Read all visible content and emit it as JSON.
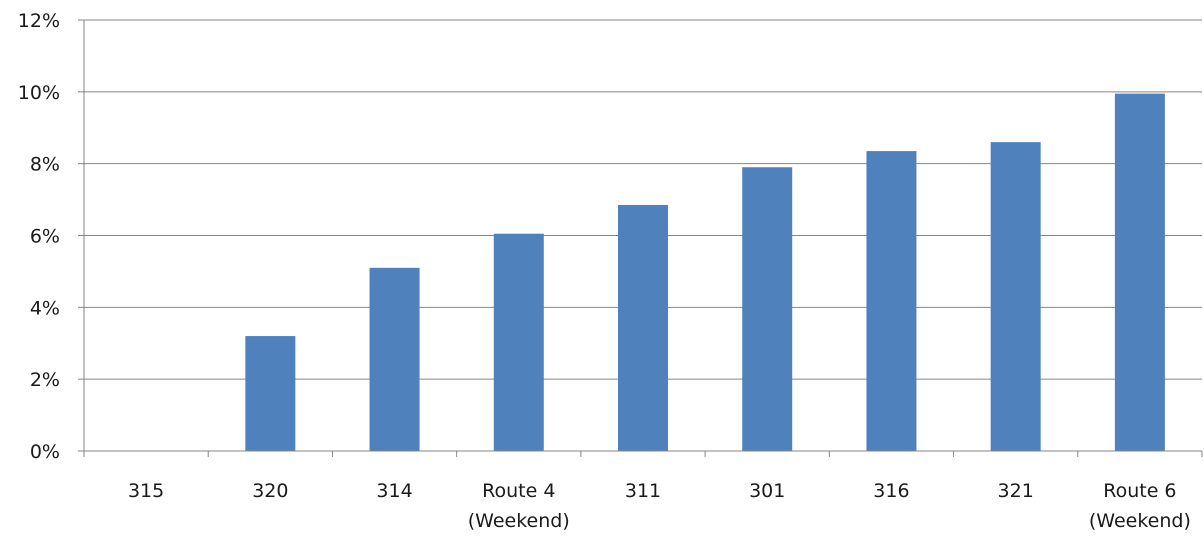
{
  "chart_data": {
    "type": "bar",
    "categories": [
      [
        "315"
      ],
      [
        "320"
      ],
      [
        "314"
      ],
      [
        "Route 4",
        "(Weekend)"
      ],
      [
        "311"
      ],
      [
        "301"
      ],
      [
        "316"
      ],
      [
        "321"
      ],
      [
        "Route 6",
        "(Weekend)"
      ]
    ],
    "values": [
      0.0,
      3.2,
      5.1,
      6.05,
      6.85,
      7.9,
      8.35,
      8.6,
      9.95
    ],
    "yticks": [
      "0%",
      "2%",
      "4%",
      "6%",
      "8%",
      "10%",
      "12%"
    ],
    "ylim": [
      0,
      12
    ],
    "grid": true,
    "bar_color": "#4f81bd"
  }
}
